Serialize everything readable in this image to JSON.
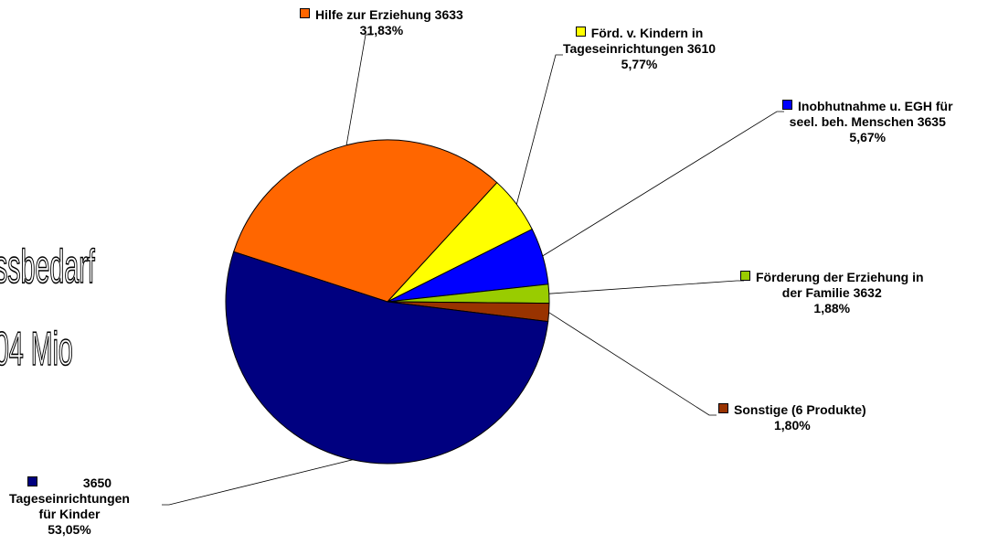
{
  "chart_data": {
    "type": "pie",
    "title": "",
    "slices": [
      {
        "label_lines": [
          "Hilfe zur Erziehung 3633"
        ],
        "pct_label": "31,83%",
        "value": 31.83,
        "color": "#ff6600"
      },
      {
        "label_lines": [
          "Förd. v. Kindern in",
          "Tageseinrichtungen 3610"
        ],
        "pct_label": "5,77%",
        "value": 5.77,
        "color": "#ffff00"
      },
      {
        "label_lines": [
          "Inobhutnahme u. EGH für",
          "seel. beh. Menschen 3635"
        ],
        "pct_label": "5,67%",
        "value": 5.67,
        "color": "#0000ff"
      },
      {
        "label_lines": [
          "Förderung der Erziehung in",
          "der Familie  3632"
        ],
        "pct_label": "1,88%",
        "value": 1.88,
        "color": "#99cc00"
      },
      {
        "label_lines": [
          "Sonstige (6 Produkte)"
        ],
        "pct_label": "1,80%",
        "value": 1.8,
        "color": "#993300"
      },
      {
        "label_lines": [
          "3650",
          "Tageseinrichtungen",
          "für Kinder"
        ],
        "pct_label": "53,05%",
        "value": 53.05,
        "color": "#000080"
      }
    ]
  },
  "side_text": {
    "line1": "ssbedarf",
    "line2": "04 Mio"
  }
}
